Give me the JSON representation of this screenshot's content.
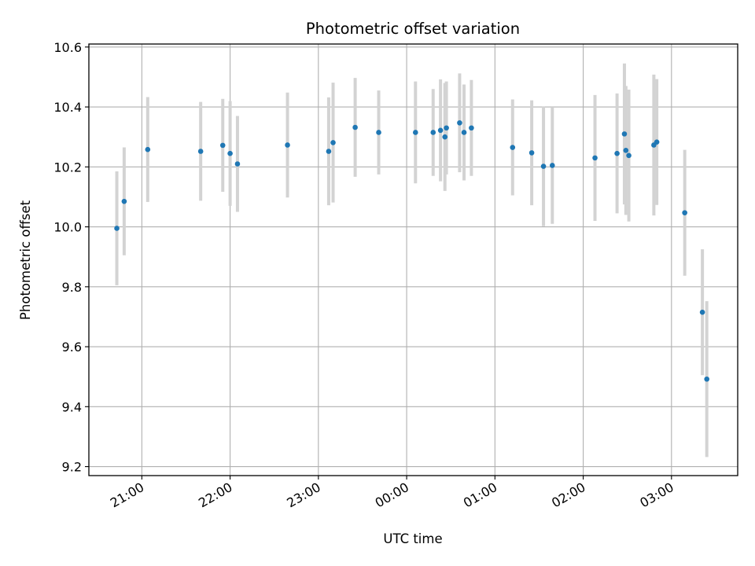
{
  "chart_data": {
    "type": "scatter",
    "title": "Photometric offset variation",
    "xlabel": "UTC time",
    "ylabel": "Photometric offset",
    "x_unit": "UTC HH:MM (times after midnight belong to the following day)",
    "xlim": [
      "20:24",
      "03:45"
    ],
    "ylim": [
      9.17,
      10.61
    ],
    "x_ticks": [
      "21:00",
      "22:00",
      "23:00",
      "00:00",
      "01:00",
      "02:00",
      "03:00"
    ],
    "y_ticks": [
      "9.2",
      "9.4",
      "9.6",
      "9.8",
      "10.0",
      "10.2",
      "10.4",
      "10.6"
    ],
    "grid": true,
    "colors": {
      "points": "#1f77b4",
      "error_bars": "#d3d3d3",
      "grid": "#b0b0b0"
    },
    "series": [
      {
        "points": [
          {
            "x": "20:43",
            "y": 9.995,
            "err": 0.19
          },
          {
            "x": "20:48",
            "y": 10.085,
            "err": 0.18
          },
          {
            "x": "21:04",
            "y": 10.258,
            "err": 0.175
          },
          {
            "x": "21:40",
            "y": 10.252,
            "err": 0.165
          },
          {
            "x": "21:55",
            "y": 10.272,
            "err": 0.155
          },
          {
            "x": "22:00",
            "y": 10.245,
            "err": 0.175
          },
          {
            "x": "22:05",
            "y": 10.21,
            "err": 0.16
          },
          {
            "x": "22:39",
            "y": 10.273,
            "err": 0.175
          },
          {
            "x": "23:07",
            "y": 10.252,
            "err": 0.18
          },
          {
            "x": "23:10",
            "y": 10.281,
            "err": 0.2
          },
          {
            "x": "23:25",
            "y": 10.332,
            "err": 0.165
          },
          {
            "x": "23:41",
            "y": 10.315,
            "err": 0.14
          },
          {
            "x": "00:06",
            "y": 10.315,
            "err": 0.17
          },
          {
            "x": "00:18",
            "y": 10.315,
            "err": 0.145
          },
          {
            "x": "00:23",
            "y": 10.322,
            "err": 0.17
          },
          {
            "x": "00:26",
            "y": 10.3,
            "err": 0.18
          },
          {
            "x": "00:27",
            "y": 10.33,
            "err": 0.155
          },
          {
            "x": "00:36",
            "y": 10.347,
            "err": 0.165
          },
          {
            "x": "00:39",
            "y": 10.315,
            "err": 0.16
          },
          {
            "x": "00:44",
            "y": 10.33,
            "err": 0.16
          },
          {
            "x": "01:12",
            "y": 10.265,
            "err": 0.16
          },
          {
            "x": "01:25",
            "y": 10.247,
            "err": 0.175
          },
          {
            "x": "01:33",
            "y": 10.202,
            "err": 0.2
          },
          {
            "x": "01:39",
            "y": 10.205,
            "err": 0.195
          },
          {
            "x": "02:08",
            "y": 10.23,
            "err": 0.21
          },
          {
            "x": "02:23",
            "y": 10.245,
            "err": 0.2
          },
          {
            "x": "02:28",
            "y": 10.31,
            "err": 0.235
          },
          {
            "x": "02:29",
            "y": 10.255,
            "err": 0.215
          },
          {
            "x": "02:31",
            "y": 10.238,
            "err": 0.22
          },
          {
            "x": "02:48",
            "y": 10.273,
            "err": 0.235
          },
          {
            "x": "02:50",
            "y": 10.283,
            "err": 0.21
          },
          {
            "x": "03:09",
            "y": 10.047,
            "err": 0.21
          },
          {
            "x": "03:21",
            "y": 9.715,
            "err": 0.21
          },
          {
            "x": "03:24",
            "y": 9.492,
            "err": 0.26
          }
        ]
      }
    ]
  }
}
